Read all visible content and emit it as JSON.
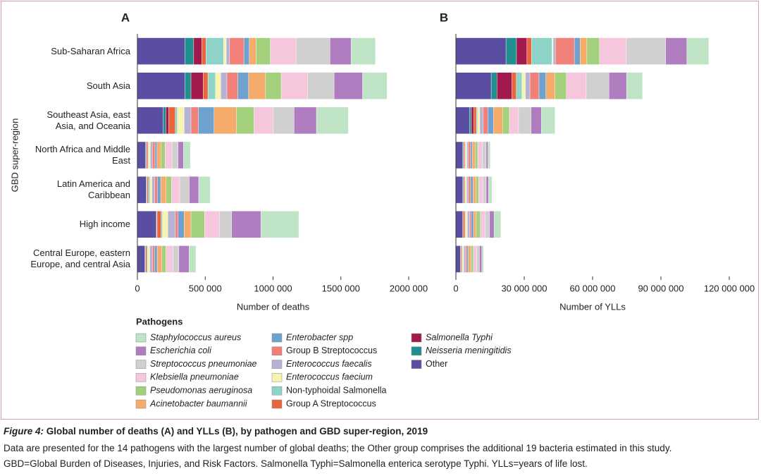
{
  "chart_data": [
    {
      "type": "stacked-barh",
      "title": "A",
      "y_label": "GBD super-region",
      "x_label": "Number of deaths",
      "legend_title": "Pathogens",
      "categories": [
        "Sub-Saharan Africa",
        "South Asia",
        "Southeast Asia, east Asia, and Oceania",
        "North Africa and Middle East",
        "Latin America and Caribbean",
        "High income",
        "Central Europe, eastern Europe, and central Asia"
      ],
      "xlim": [
        0,
        2000000
      ],
      "xticks": [
        0,
        {
          "value": 500000,
          "label": "500 000"
        },
        {
          "value": 1000000,
          "label": "1000 000"
        },
        {
          "value": 1500000,
          "label": "1500 000"
        },
        {
          "value": 2000000,
          "label": "2000 000"
        }
      ],
      "series": [
        {
          "name": "Staphylococcus aureus",
          "color": "#bfe3c5",
          "values": [
            180000,
            180000,
            235000,
            50000,
            85000,
            280000,
            50000
          ]
        },
        {
          "name": "Escherichia coli",
          "color": "#b07cc0",
          "values": [
            155000,
            210000,
            165000,
            40000,
            70000,
            215000,
            75000
          ]
        },
        {
          "name": "Streptococcus pneumoniae",
          "color": "#d0d0d0",
          "values": [
            250000,
            195000,
            155000,
            45000,
            70000,
            90000,
            45000
          ]
        },
        {
          "name": "Klebsiella pneumoniae",
          "color": "#f6c6dc",
          "values": [
            190000,
            195000,
            140000,
            50000,
            60000,
            110000,
            50000
          ]
        },
        {
          "name": "Pseudomonas aeruginosa",
          "color": "#a3d07b",
          "values": [
            105000,
            115000,
            130000,
            30000,
            40000,
            100000,
            30000
          ]
        },
        {
          "name": "Acinetobacter baumannii",
          "color": "#f5ab6a",
          "values": [
            50000,
            125000,
            165000,
            30000,
            40000,
            50000,
            35000
          ]
        },
        {
          "name": "Enterobacter spp",
          "color": "#6fa1cf",
          "values": [
            40000,
            80000,
            115000,
            15000,
            25000,
            45000,
            20000
          ]
        },
        {
          "name": "Group B Streptococcus",
          "color": "#f08078",
          "values": [
            105000,
            80000,
            55000,
            20000,
            20000,
            20000,
            15000
          ]
        },
        {
          "name": "Enterococcus faecalis",
          "color": "#b6b2d6",
          "values": [
            25000,
            45000,
            50000,
            15000,
            20000,
            55000,
            20000
          ]
        },
        {
          "name": "Enterococcus faecium",
          "color": "#f6f4b0",
          "values": [
            20000,
            40000,
            50000,
            12000,
            15000,
            40000,
            15000
          ]
        },
        {
          "name": "Non-typhoidal Salmonella",
          "color": "#8dd3c8",
          "values": [
            130000,
            55000,
            15000,
            5000,
            10000,
            10000,
            5000
          ]
        },
        {
          "name": "Group A Streptococcus",
          "color": "#e8653e",
          "values": [
            30000,
            35000,
            50000,
            10000,
            10000,
            30000,
            10000
          ]
        },
        {
          "name": "Salmonella Typhi",
          "color": "#a21a4d",
          "values": [
            60000,
            90000,
            20000,
            3000,
            2000,
            2000,
            1000
          ]
        },
        {
          "name": "Neisseria meningitidis",
          "color": "#1f8f8f",
          "values": [
            65000,
            45000,
            20000,
            5000,
            5000,
            3000,
            5000
          ]
        },
        {
          "name": "Other",
          "color": "#5a4ea3",
          "values": [
            350000,
            350000,
            190000,
            60000,
            65000,
            140000,
            55000
          ]
        }
      ]
    },
    {
      "type": "stacked-barh",
      "title": "B",
      "x_label": "Number of YLLs",
      "xlim": [
        0,
        120000000
      ],
      "xticks": [
        0,
        {
          "value": 30000000,
          "label": "30 000 000"
        },
        {
          "value": 60000000,
          "label": "60 000 000"
        },
        {
          "value": 90000000,
          "label": "90 000 000"
        },
        {
          "value": 120000000,
          "label": "120 000 000"
        }
      ],
      "series": [
        {
          "color": "#bfe3c5",
          "values": [
            9600000,
            7000000,
            6000000,
            1000000,
            1600000,
            3000000,
            800000
          ]
        },
        {
          "color": "#b07cc0",
          "values": [
            9300000,
            7700000,
            4500000,
            800000,
            1000000,
            2000000,
            1000000
          ]
        },
        {
          "color": "#d0d0d0",
          "values": [
            17300000,
            10000000,
            5500000,
            1700000,
            1500000,
            2000000,
            1200000
          ]
        },
        {
          "color": "#f6c6dc",
          "values": [
            11800000,
            8700000,
            4000000,
            2000000,
            1800000,
            2000000,
            1500000
          ]
        },
        {
          "color": "#a3d07b",
          "values": [
            5500000,
            5000000,
            3000000,
            1200000,
            1200000,
            1800000,
            1000000
          ]
        },
        {
          "color": "#f5ab6a",
          "values": [
            3000000,
            4000000,
            4000000,
            1200000,
            1300000,
            1200000,
            1200000
          ]
        },
        {
          "color": "#6fa1cf",
          "values": [
            2500000,
            3000000,
            2500000,
            700000,
            1000000,
            1000000,
            600000
          ]
        },
        {
          "color": "#f08078",
          "values": [
            8300000,
            4000000,
            2000000,
            1000000,
            1000000,
            700000,
            600000
          ]
        },
        {
          "color": "#b6b2d6",
          "values": [
            1000000,
            2000000,
            1500000,
            700000,
            800000,
            1000000,
            800000
          ]
        },
        {
          "color": "#f6f4b0",
          "values": [
            500000,
            1500000,
            1000000,
            500000,
            500000,
            800000,
            500000
          ]
        },
        {
          "color": "#8dd3c8",
          "values": [
            9000000,
            2500000,
            500000,
            300000,
            300000,
            300000,
            200000
          ]
        },
        {
          "color": "#e8653e",
          "values": [
            2000000,
            2000000,
            1200000,
            500000,
            500000,
            800000,
            500000
          ]
        },
        {
          "color": "#a21a4d",
          "values": [
            4600000,
            6500000,
            1000000,
            200000,
            100000,
            50000,
            50000
          ]
        },
        {
          "color": "#1f8f8f",
          "values": [
            4600000,
            2500000,
            800000,
            300000,
            300000,
            100000,
            200000
          ]
        },
        {
          "color": "#5a4ea3",
          "values": [
            22000000,
            15500000,
            6000000,
            3000000,
            3000000,
            3000000,
            2000000
          ]
        }
      ]
    }
  ],
  "caption": {
    "label": "Figure 4:",
    "title": "Global number of deaths (A) and YLLs (B), by pathogen and GBD super-region, 2019",
    "lines": [
      "Data are presented for the 14 pathogens with the largest number of global deaths; the Other group comprises the additional 19 bacteria estimated in this study.",
      "GBD=Global Burden of Diseases, Injuries, and Risk Factors. Salmonella Typhi=Salmonella enterica serotype Typhi. YLLs=years of life lost."
    ]
  }
}
